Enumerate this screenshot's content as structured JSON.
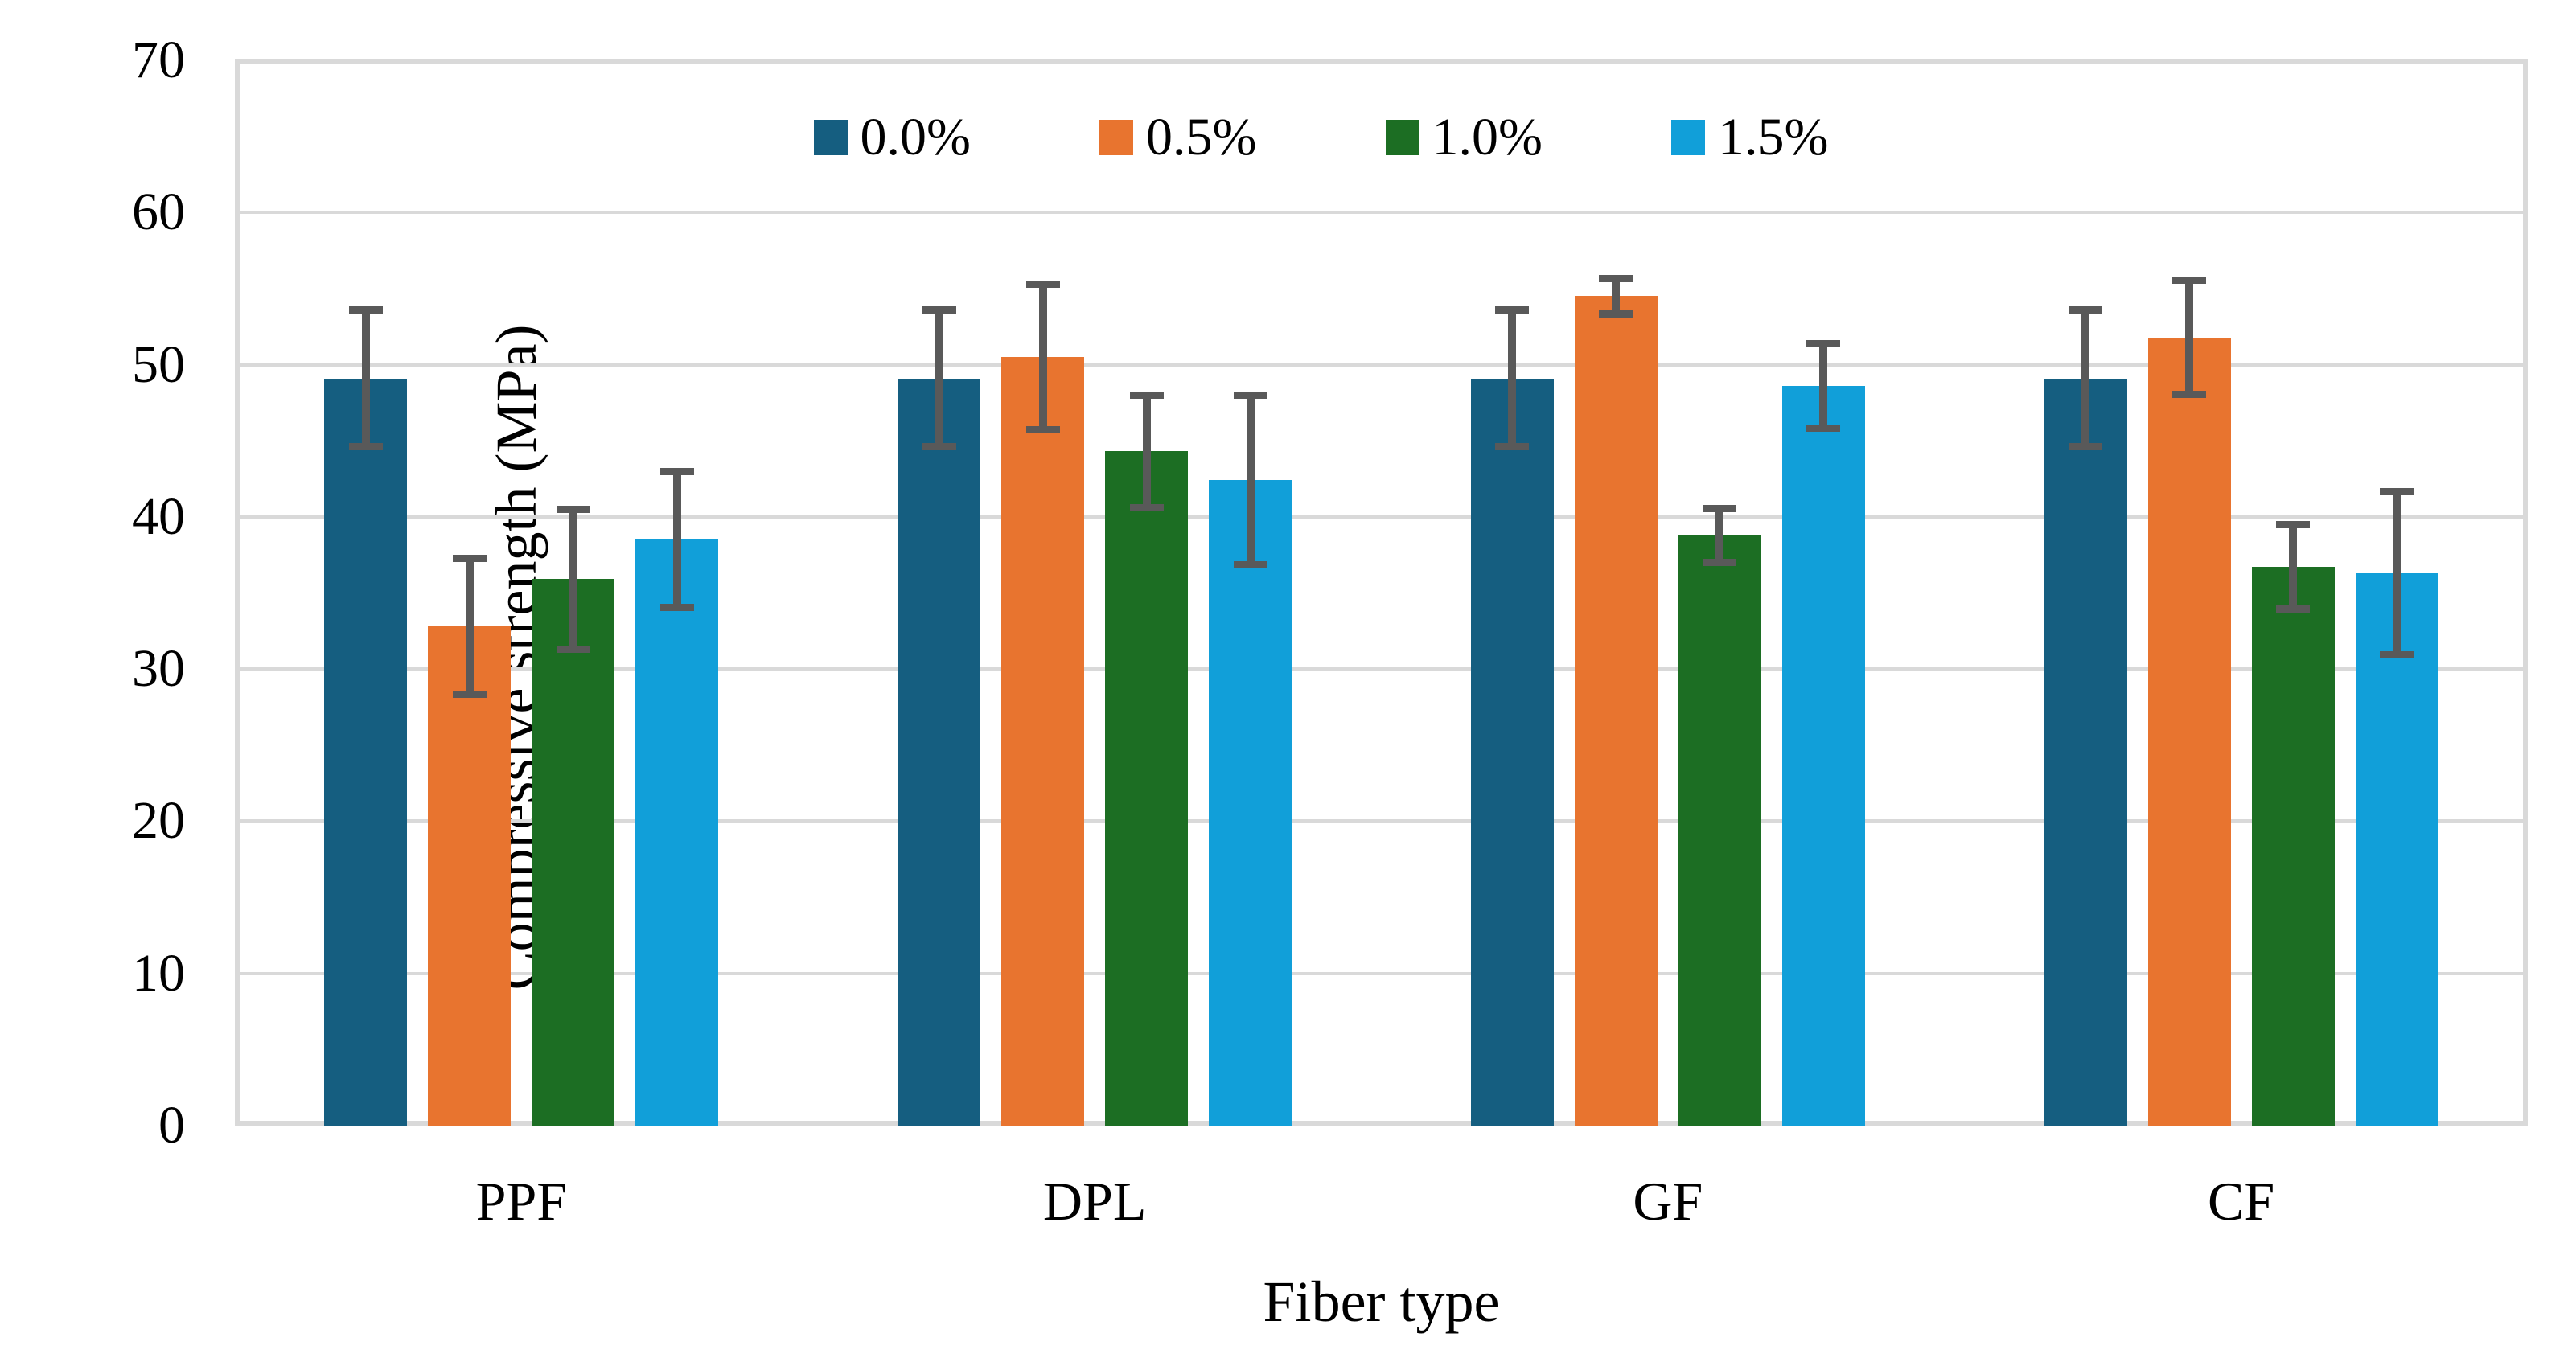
{
  "chart_data": {
    "type": "bar",
    "title": "",
    "xlabel": "Fiber type",
    "ylabel": "Compressive strength (MPa)",
    "ylim": [
      0,
      70
    ],
    "yticks": [
      0,
      10,
      20,
      30,
      40,
      50,
      60,
      70
    ],
    "grid": true,
    "legend_position": "top-center",
    "categories": [
      "PPF",
      "DPL",
      "GF",
      "CF"
    ],
    "series": [
      {
        "name": "0.0%",
        "color": "#155e80",
        "values": [
          49.1,
          49.1,
          49.1,
          49.1
        ],
        "errors": [
          4.5,
          4.5,
          4.5,
          4.5
        ]
      },
      {
        "name": "0.5%",
        "color": "#e8742f",
        "values": [
          32.8,
          50.5,
          54.5,
          51.8
        ],
        "errors": [
          4.5,
          4.8,
          1.2,
          3.8
        ]
      },
      {
        "name": "1.0%",
        "color": "#1c6e23",
        "values": [
          35.9,
          44.3,
          38.8,
          36.7
        ],
        "errors": [
          4.6,
          3.7,
          1.8,
          2.8
        ]
      },
      {
        "name": "1.5%",
        "color": "#119fd9",
        "values": [
          38.5,
          42.4,
          48.6,
          36.3
        ],
        "errors": [
          4.5,
          5.6,
          2.8,
          5.4
        ]
      }
    ],
    "error_bar_color": "#595959",
    "gridline_color": "#d9d9d9",
    "axis_line_color": "#d9d9d9",
    "text_color": "#000000"
  }
}
